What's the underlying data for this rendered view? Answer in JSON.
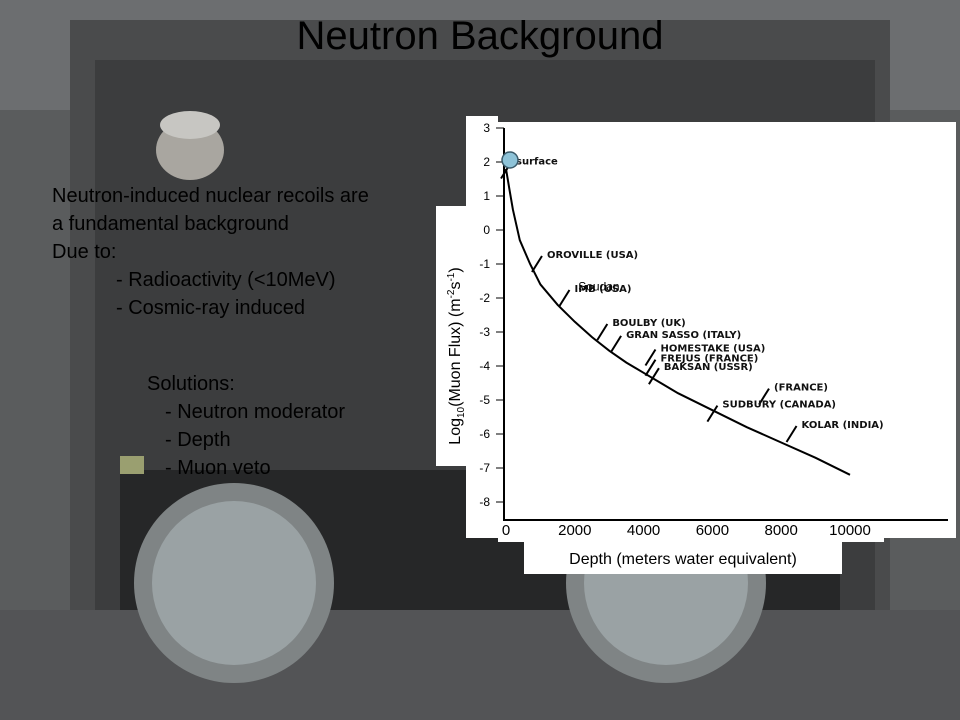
{
  "slide": {
    "title": "Neutron Background"
  },
  "bullets": [
    "Neutron-induced nuclear recoils are",
    "a fundamental background",
    "Due to:",
    "-  Radioactivity (<10MeV)",
    "-  Cosmic-ray induced"
  ],
  "solutions": {
    "heading": "Solutions:",
    "items": [
      "- Neutron moderator",
      "- Depth",
      "- Muon veto"
    ]
  },
  "colors": {
    "soudan_label": "#3aa0b0",
    "soudan_marker": "#8ec3d8"
  },
  "chart_data": {
    "type": "line",
    "xlabel": "Depth (meters water equivalent)",
    "ylabel_parts": {
      "pre": "Log",
      "sub": "10",
      "mid": "(Muon Flux) (m",
      "sup1": "-2",
      "mid2": "s",
      "sup2": "-1",
      "post": ")"
    },
    "x_ticks": [
      "0",
      "2000",
      "4000",
      "6000",
      "8000",
      "10000"
    ],
    "y_ticks": [
      "3",
      "2",
      "1",
      "0",
      "-1",
      "-2",
      "-3",
      "-4",
      "-5",
      "-6",
      "-7",
      "-8"
    ],
    "xlim": [
      0,
      10000
    ],
    "ylim": [
      -8,
      3
    ],
    "curve": {
      "x": [
        0,
        100,
        200,
        400,
        700,
        1000,
        1500,
        2000,
        2500,
        3000,
        3500,
        4000,
        4500,
        5000,
        6000,
        7000,
        8000,
        9000,
        10000
      ],
      "y": [
        1.8,
        1.2,
        0.6,
        -0.3,
        -1.0,
        -1.6,
        -2.2,
        -2.7,
        -3.15,
        -3.55,
        -3.9,
        -4.2,
        -4.5,
        -4.8,
        -5.3,
        -5.8,
        -6.25,
        -6.7,
        -7.2
      ]
    },
    "sites": [
      {
        "name": "surface",
        "x": 0,
        "y": 1.75
      },
      {
        "name": "OROVILLE (USA)",
        "x": 900,
        "y": -1.0
      },
      {
        "name": "IMB (USA)",
        "x": 1700,
        "y": -2.0
      },
      {
        "name": "BOULBY (UK)",
        "x": 2800,
        "y": -3.0
      },
      {
        "name": "GRAN SASSO (ITALY)",
        "x": 3200,
        "y": -3.35
      },
      {
        "name": "HOMESTAKE (USA)",
        "x": 4200,
        "y": -3.75
      },
      {
        "name": "FREJUS (FRANCE)",
        "x": 4200,
        "y": -4.05
      },
      {
        "name": "BAKSAN (USSR)",
        "x": 4300,
        "y": -4.3
      },
      {
        "name": "(FRANCE)",
        "x": 7500,
        "y": -4.9
      },
      {
        "name": "SUDBURY (CANADA)",
        "x": 6000,
        "y": -5.4
      },
      {
        "name": "KOLAR (INDIA)",
        "x": 8300,
        "y": -6.0
      }
    ],
    "highlight": {
      "name": "Soudan",
      "x": 2100,
      "y": -1.9
    }
  }
}
